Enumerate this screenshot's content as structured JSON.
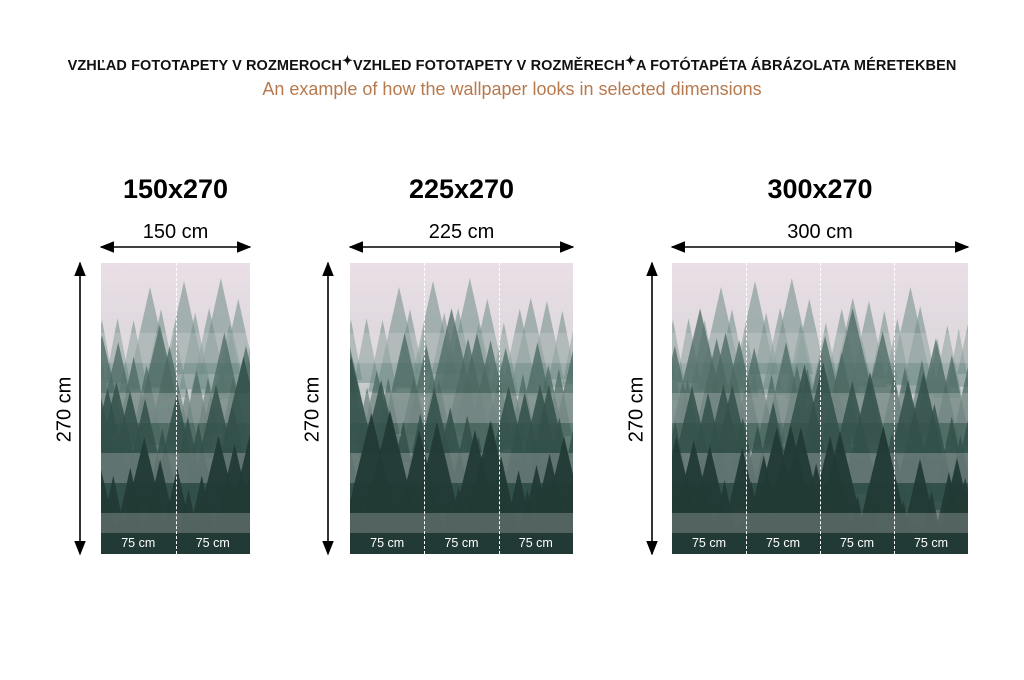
{
  "header": {
    "languages": [
      "VZHĽAD FOTOTAPETY V ROZMEROCH",
      "VZHLED FOTOTAPETY V ROZMĚRECH",
      "A FOTÓTAPÉTA ÁBRÁZOLATA MÉRETEKBEN"
    ],
    "separator_icon": "sparkle-icon",
    "subtitle": "An example of how the wallpaper looks in selected dimensions"
  },
  "colors": {
    "subtitle": "#b77a4e",
    "fog": "#ece4ea",
    "forest": "#2f4a44"
  },
  "panels": [
    {
      "title": "150x270",
      "width_label": "150 cm",
      "height_label": "270 cm",
      "strips": [
        "75 cm",
        "75 cm"
      ]
    },
    {
      "title": "225x270",
      "width_label": "225 cm",
      "height_label": "270 cm",
      "strips": [
        "75 cm",
        "75 cm",
        "75 cm"
      ]
    },
    {
      "title": "300x270",
      "width_label": "300 cm",
      "height_label": "270 cm",
      "strips": [
        "75 cm",
        "75 cm",
        "75 cm",
        "75 cm"
      ]
    }
  ]
}
